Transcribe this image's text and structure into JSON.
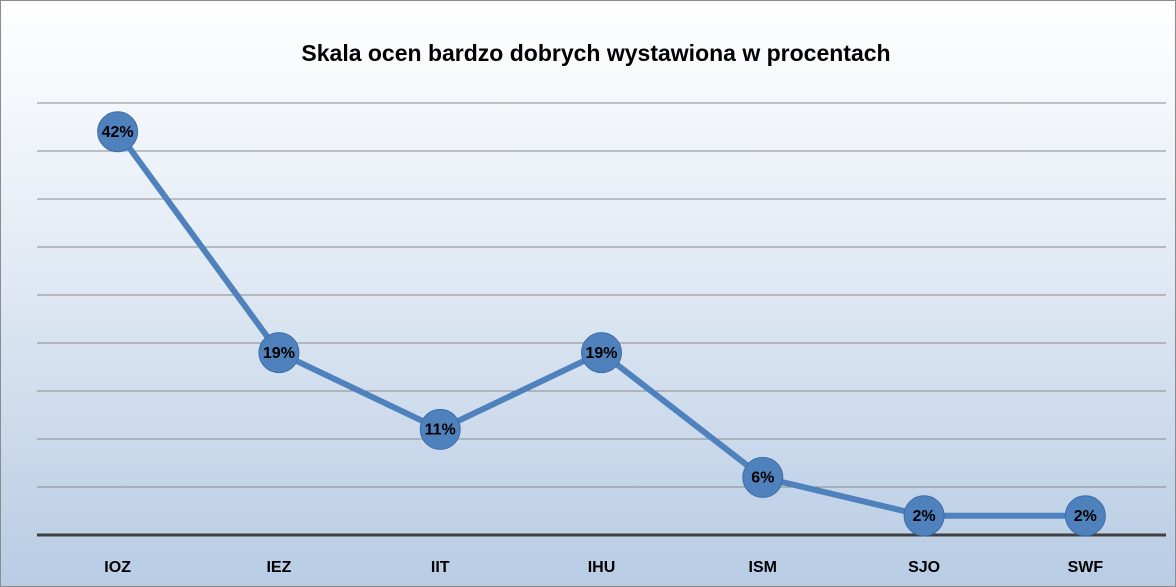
{
  "chart_data": {
    "type": "line",
    "title": "Skala ocen bardzo dobrych wystawiona w procentach",
    "categories": [
      "IOZ",
      "IEZ",
      "IIT",
      "IHU",
      "ISM",
      "SJO",
      "SWF"
    ],
    "values": [
      42,
      19,
      11,
      19,
      6,
      2,
      2
    ],
    "value_labels": [
      "42%",
      "19%",
      "11%",
      "19%",
      "6%",
      "2%",
      "2%"
    ],
    "color": "#4f81bd",
    "ylim": [
      0,
      45
    ],
    "yticks": [
      0,
      5,
      10,
      15,
      20,
      25,
      30,
      35,
      40,
      45
    ],
    "grid": true
  }
}
